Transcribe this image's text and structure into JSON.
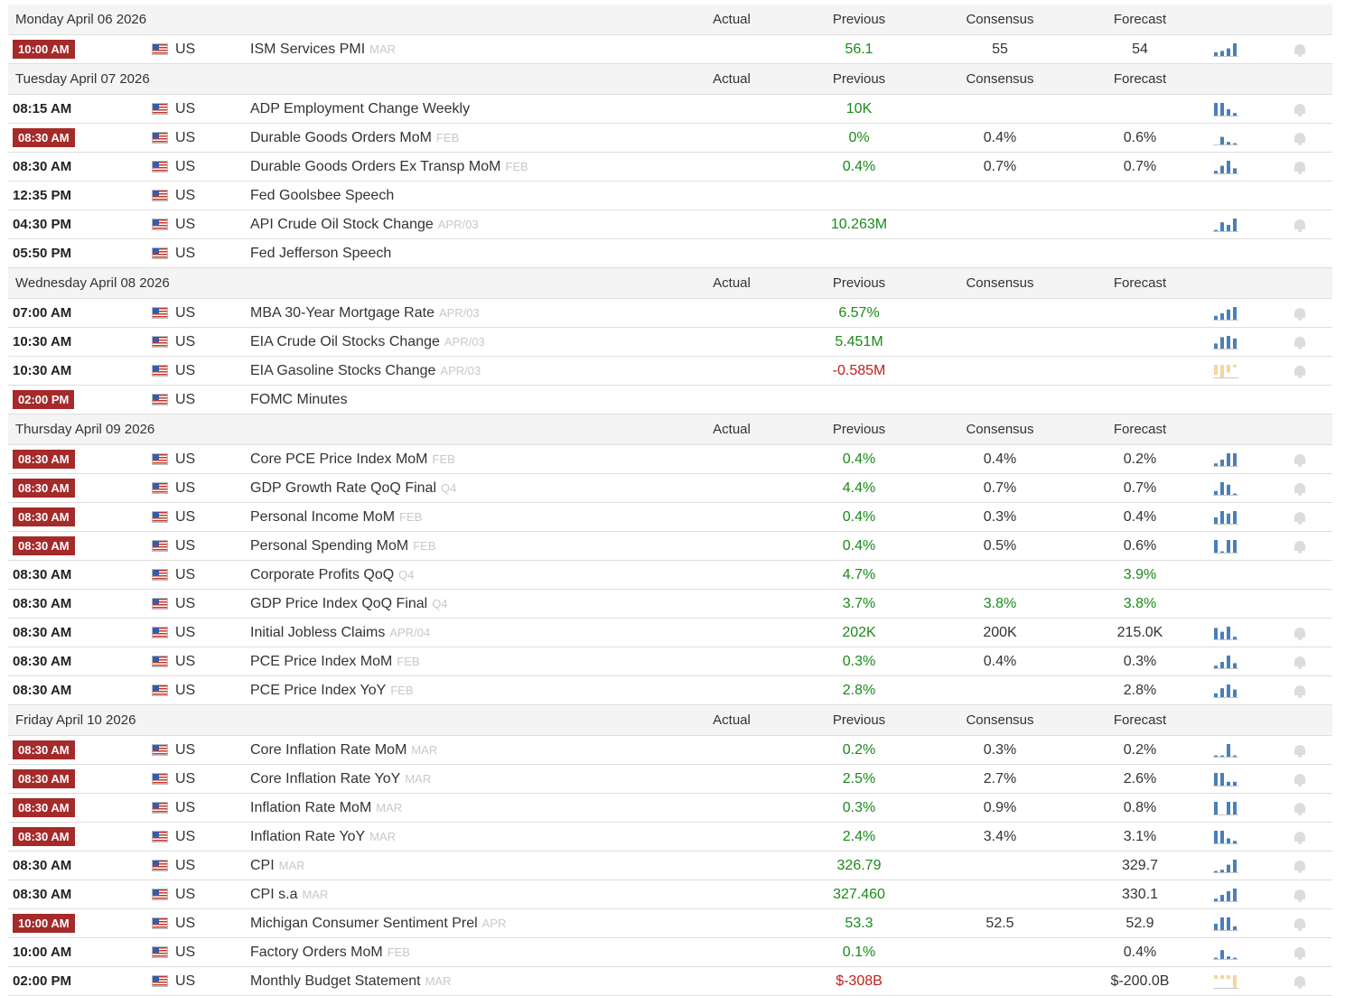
{
  "columns": {
    "actual": "Actual",
    "previous": "Previous",
    "consensus": "Consensus",
    "forecast": "Forecast"
  },
  "colors": {
    "important": "#a52a2a",
    "positive": "#1a8a1a",
    "negative": "#c0201c",
    "chart_bar": "#4a7fb8",
    "chart_bar_neg": "#f5d6a0",
    "chart_base": "#c8c8c8",
    "bell": "#dcdcdc"
  },
  "days": [
    {
      "date": "Monday April 06 2026",
      "events": [
        {
          "time": "10:00 AM",
          "important": true,
          "country": "US",
          "event": "ISM Services PMI",
          "ref": "MAR",
          "previous": "56.1",
          "prev_color": "green",
          "consensus": "55",
          "forecast": "54",
          "fore_color": "plain",
          "chart": [
            3,
            4,
            6,
            10
          ],
          "neg": false,
          "bell": true
        }
      ]
    },
    {
      "date": "Tuesday April 07 2026",
      "events": [
        {
          "time": "08:15 AM",
          "important": false,
          "country": "US",
          "event": "ADP Employment Change Weekly",
          "ref": "",
          "previous": "10K",
          "prev_color": "green",
          "consensus": "",
          "forecast": "",
          "fore_color": "plain",
          "chart": [
            10,
            10,
            5,
            2
          ],
          "neg": false,
          "bell": true
        },
        {
          "time": "08:30 AM",
          "important": true,
          "country": "US",
          "event": "Durable Goods Orders MoM",
          "ref": "FEB",
          "previous": "0%",
          "prev_color": "green",
          "consensus": "0.4%",
          "forecast": "0.6%",
          "fore_color": "plain",
          "chart": [
            0,
            6,
            2,
            1
          ],
          "neg": false,
          "bell": true
        },
        {
          "time": "08:30 AM",
          "important": false,
          "country": "US",
          "event": "Durable Goods Orders Ex Transp MoM",
          "ref": "FEB",
          "previous": "0.4%",
          "prev_color": "green",
          "consensus": "0.7%",
          "forecast": "0.7%",
          "fore_color": "plain",
          "chart": [
            2,
            6,
            10,
            4
          ],
          "neg": false,
          "bell": true
        },
        {
          "time": "12:35 PM",
          "important": false,
          "country": "US",
          "event": "Fed Goolsbee Speech",
          "ref": "",
          "previous": "",
          "prev_color": "green",
          "consensus": "",
          "forecast": "",
          "fore_color": "plain",
          "chart": [],
          "neg": false,
          "bell": false
        },
        {
          "time": "04:30 PM",
          "important": false,
          "country": "US",
          "event": "API Crude Oil Stock Change",
          "ref": "APR/03",
          "previous": "10.263M",
          "prev_color": "green",
          "consensus": "",
          "forecast": "",
          "fore_color": "plain",
          "chart": [
            1,
            7,
            5,
            10
          ],
          "neg": false,
          "bell": true
        },
        {
          "time": "05:50 PM",
          "important": false,
          "country": "US",
          "event": "Fed Jefferson Speech",
          "ref": "",
          "previous": "",
          "prev_color": "green",
          "consensus": "",
          "forecast": "",
          "fore_color": "plain",
          "chart": [],
          "neg": false,
          "bell": false
        }
      ]
    },
    {
      "date": "Wednesday April 08 2026",
      "events": [
        {
          "time": "07:00 AM",
          "important": false,
          "country": "US",
          "event": "MBA 30-Year Mortgage Rate",
          "ref": "APR/03",
          "previous": "6.57%",
          "prev_color": "green",
          "consensus": "",
          "forecast": "",
          "fore_color": "plain",
          "chart": [
            3,
            5,
            8,
            10
          ],
          "neg": false,
          "bell": true
        },
        {
          "time": "10:30 AM",
          "important": false,
          "country": "US",
          "event": "EIA Crude Oil Stocks Change",
          "ref": "APR/03",
          "previous": "5.451M",
          "prev_color": "green",
          "consensus": "",
          "forecast": "",
          "fore_color": "plain",
          "chart": [
            4,
            9,
            10,
            8
          ],
          "neg": false,
          "bell": true
        },
        {
          "time": "10:30 AM",
          "important": false,
          "country": "US",
          "event": "EIA Gasoline Stocks Change",
          "ref": "APR/03",
          "previous": "-0.585M",
          "prev_color": "red",
          "consensus": "",
          "forecast": "",
          "fore_color": "plain",
          "chart": [
            8,
            10,
            6,
            2
          ],
          "neg": true,
          "bell": true
        },
        {
          "time": "02:00 PM",
          "important": true,
          "country": "US",
          "event": "FOMC Minutes",
          "ref": "",
          "previous": "",
          "prev_color": "green",
          "consensus": "",
          "forecast": "",
          "fore_color": "plain",
          "chart": [],
          "neg": false,
          "bell": false
        }
      ]
    },
    {
      "date": "Thursday April 09 2026",
      "events": [
        {
          "time": "08:30 AM",
          "important": true,
          "country": "US",
          "event": "Core PCE Price Index MoM",
          "ref": "FEB",
          "previous": "0.4%",
          "prev_color": "green",
          "consensus": "0.4%",
          "forecast": "0.2%",
          "fore_color": "plain",
          "chart": [
            2,
            5,
            10,
            10
          ],
          "neg": false,
          "bell": true
        },
        {
          "time": "08:30 AM",
          "important": true,
          "country": "US",
          "event": "GDP Growth Rate QoQ Final",
          "ref": "Q4",
          "previous": "4.4%",
          "prev_color": "green",
          "consensus": "0.7%",
          "forecast": "0.7%",
          "fore_color": "plain",
          "chart": [
            3,
            10,
            8,
            1
          ],
          "neg": false,
          "bell": true
        },
        {
          "time": "08:30 AM",
          "important": true,
          "country": "US",
          "event": "Personal Income MoM",
          "ref": "FEB",
          "previous": "0.4%",
          "prev_color": "green",
          "consensus": "0.3%",
          "forecast": "0.4%",
          "fore_color": "plain",
          "chart": [
            5,
            10,
            8,
            10
          ],
          "neg": false,
          "bell": true
        },
        {
          "time": "08:30 AM",
          "important": true,
          "country": "US",
          "event": "Personal Spending MoM",
          "ref": "FEB",
          "previous": "0.4%",
          "prev_color": "green",
          "consensus": "0.5%",
          "forecast": "0.6%",
          "fore_color": "plain",
          "chart": [
            10,
            1,
            10,
            10
          ],
          "neg": false,
          "bell": true
        },
        {
          "time": "08:30 AM",
          "important": false,
          "country": "US",
          "event": "Corporate Profits QoQ",
          "ref": "Q4",
          "previous": "4.7%",
          "prev_color": "green",
          "consensus": "",
          "forecast": "3.9%",
          "fore_color": "green",
          "chart": [],
          "neg": false,
          "bell": false
        },
        {
          "time": "08:30 AM",
          "important": false,
          "country": "US",
          "event": "GDP Price Index QoQ Final",
          "ref": "Q4",
          "previous": "3.7%",
          "prev_color": "green",
          "consensus": "3.8%",
          "cons_color": "green",
          "forecast": "3.8%",
          "fore_color": "green",
          "chart": [],
          "neg": false,
          "bell": false
        },
        {
          "time": "08:30 AM",
          "important": false,
          "country": "US",
          "event": "Initial Jobless Claims",
          "ref": "APR/04",
          "previous": "202K",
          "prev_color": "green",
          "consensus": "200K",
          "forecast": "215.0K",
          "fore_color": "plain",
          "chart": [
            9,
            6,
            10,
            2
          ],
          "neg": false,
          "bell": true
        },
        {
          "time": "08:30 AM",
          "important": false,
          "country": "US",
          "event": "PCE Price Index MoM",
          "ref": "FEB",
          "previous": "0.3%",
          "prev_color": "green",
          "consensus": "0.4%",
          "forecast": "0.3%",
          "fore_color": "plain",
          "chart": [
            2,
            5,
            10,
            4
          ],
          "neg": false,
          "bell": true
        },
        {
          "time": "08:30 AM",
          "important": false,
          "country": "US",
          "event": "PCE Price Index YoY",
          "ref": "FEB",
          "previous": "2.8%",
          "prev_color": "green",
          "consensus": "",
          "forecast": "2.8%",
          "fore_color": "plain",
          "chart": [
            3,
            7,
            10,
            6
          ],
          "neg": false,
          "bell": true
        }
      ]
    },
    {
      "date": "Friday April 10 2026",
      "events": [
        {
          "time": "08:30 AM",
          "important": true,
          "country": "US",
          "event": "Core Inflation Rate MoM",
          "ref": "MAR",
          "previous": "0.2%",
          "prev_color": "green",
          "consensus": "0.3%",
          "forecast": "0.2%",
          "fore_color": "plain",
          "chart": [
            1,
            1,
            10,
            1
          ],
          "neg": false,
          "bell": true
        },
        {
          "time": "08:30 AM",
          "important": true,
          "country": "US",
          "event": "Core Inflation Rate YoY",
          "ref": "MAR",
          "previous": "2.5%",
          "prev_color": "green",
          "consensus": "2.7%",
          "forecast": "2.6%",
          "fore_color": "plain",
          "chart": [
            10,
            10,
            3,
            3
          ],
          "neg": false,
          "bell": true
        },
        {
          "time": "08:30 AM",
          "important": true,
          "country": "US",
          "event": "Inflation Rate MoM",
          "ref": "MAR",
          "previous": "0.3%",
          "prev_color": "green",
          "consensus": "0.9%",
          "forecast": "0.8%",
          "fore_color": "plain",
          "chart": [
            10,
            0,
            10,
            10
          ],
          "neg": false,
          "bell": true
        },
        {
          "time": "08:30 AM",
          "important": true,
          "country": "US",
          "event": "Inflation Rate YoY",
          "ref": "MAR",
          "previous": "2.4%",
          "prev_color": "green",
          "consensus": "3.4%",
          "forecast": "3.1%",
          "fore_color": "plain",
          "chart": [
            10,
            10,
            4,
            2
          ],
          "neg": false,
          "bell": true
        },
        {
          "time": "08:30 AM",
          "important": false,
          "country": "US",
          "event": "CPI",
          "ref": "MAR",
          "previous": "326.79",
          "prev_color": "green",
          "consensus": "",
          "forecast": "329.7",
          "fore_color": "plain",
          "chart": [
            1,
            2,
            6,
            10
          ],
          "neg": false,
          "bell": true
        },
        {
          "time": "08:30 AM",
          "important": false,
          "country": "US",
          "event": "CPI s.a",
          "ref": "MAR",
          "previous": "327.460",
          "prev_color": "green",
          "consensus": "",
          "forecast": "330.1",
          "fore_color": "plain",
          "chart": [
            2,
            5,
            8,
            10
          ],
          "neg": false,
          "bell": true
        },
        {
          "time": "10:00 AM",
          "important": true,
          "country": "US",
          "event": "Michigan Consumer Sentiment Prel",
          "ref": "APR",
          "previous": "53.3",
          "prev_color": "green",
          "consensus": "52.5",
          "forecast": "52.9",
          "fore_color": "plain",
          "chart": [
            5,
            10,
            10,
            3
          ],
          "neg": false,
          "bell": true
        },
        {
          "time": "10:00 AM",
          "important": false,
          "country": "US",
          "event": "Factory Orders MoM",
          "ref": "FEB",
          "previous": "0.1%",
          "prev_color": "green",
          "consensus": "",
          "forecast": "0.4%",
          "fore_color": "plain",
          "chart": [
            1,
            7,
            2,
            1
          ],
          "neg": false,
          "bell": true
        },
        {
          "time": "02:00 PM",
          "important": false,
          "country": "US",
          "event": "Monthly Budget Statement",
          "ref": "MAR",
          "previous": "$-308B",
          "prev_color": "red",
          "consensus": "",
          "forecast": "$-200.0B",
          "fore_color": "plain",
          "chart": [
            3,
            3,
            3,
            10
          ],
          "neg": true,
          "bell": true
        }
      ]
    }
  ]
}
